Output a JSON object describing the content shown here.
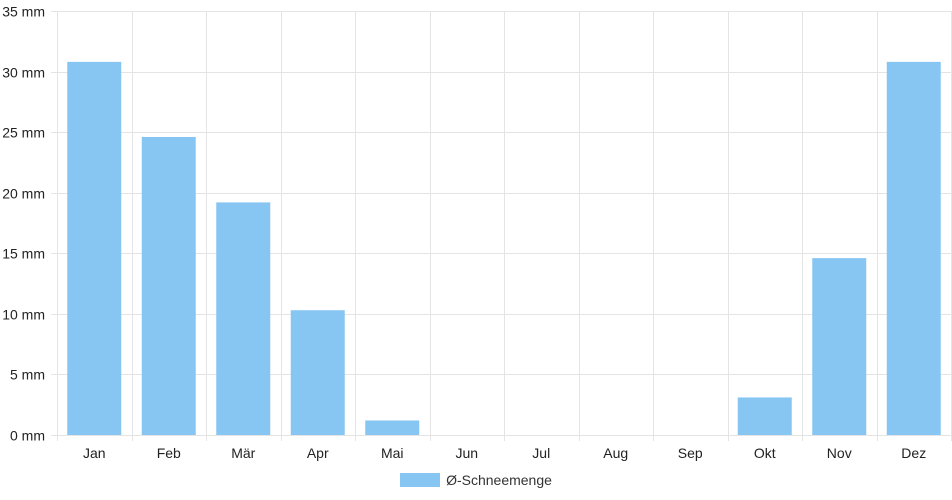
{
  "chart_data": {
    "type": "bar",
    "categories": [
      "Jan",
      "Feb",
      "Mär",
      "Apr",
      "Mai",
      "Jun",
      "Jul",
      "Aug",
      "Sep",
      "Okt",
      "Nov",
      "Dez"
    ],
    "series": [
      {
        "name": "Ø-Schneemenge",
        "values": [
          30.8,
          24.6,
          19.2,
          10.3,
          1.2,
          0,
          0,
          0,
          0,
          3.1,
          14.6,
          30.8
        ],
        "color": "#87c6f2"
      }
    ],
    "yticks": [
      "0 mm",
      "5 mm",
      "10 mm",
      "15 mm",
      "20 mm",
      "25 mm",
      "30 mm",
      "35 mm"
    ],
    "ylim": [
      0,
      35
    ],
    "grid": true,
    "legend": "bottom-center",
    "gridColor": "#e4e4e4"
  }
}
